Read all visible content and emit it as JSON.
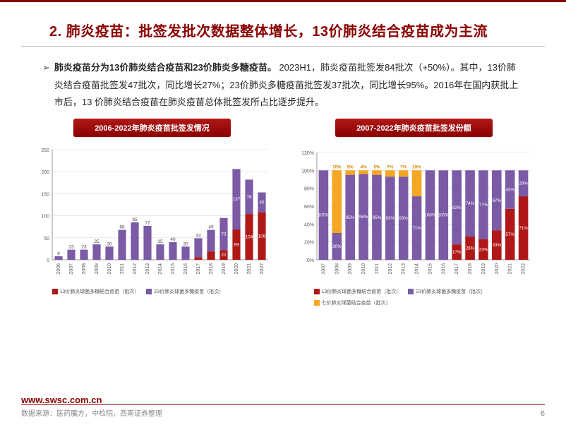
{
  "title": "2. 肺炎疫苗：批签发批次数据整体增长，13价肺炎结合疫苗成为主流",
  "bullet_marker": "➢",
  "body": {
    "bold_lead": "肺炎疫苗分为13价肺炎结合疫苗和23价肺炎多糖疫苗。",
    "rest": " 2023H1，肺炎疫苗批签发84批次（+50%）。其中，13价肺炎结合疫苗批签发47批次，同比增长27%；23价肺炎多糖疫苗批签发37批次，同比增长95%。2016年在国内获批上市后，13 价肺炎结合疫苗在肺炎疫苗总体批签发所占比逐步提升。"
  },
  "colors": {
    "brand_red": "#8b0000",
    "series_red": "#b01818",
    "series_purple": "#7b5aa6",
    "series_orange": "#f5a623",
    "axis": "#808080",
    "grid": "#d9d9d9",
    "tick_text": "#595959",
    "data_label": "#4a4a4a",
    "orange_label": "#d48806"
  },
  "left_chart": {
    "caption": "2006-2022年肺炎疫苗批签发情况",
    "type": "stacked-bar",
    "years": [
      "2006",
      "2007",
      "2008",
      "2009",
      "2010",
      "2011",
      "2012",
      "2013",
      "2014",
      "2015",
      "2016",
      "2017",
      "2018",
      "2019",
      "2020",
      "2021",
      "2022"
    ],
    "ylim": [
      0,
      250
    ],
    "ytick_step": 50,
    "yticks": [
      0,
      50,
      100,
      150,
      200,
      250
    ],
    "bar_width": 0.62,
    "series": [
      {
        "name": "13价肺炎球菌多糖结合疫苗（批次）",
        "color": "#b01818",
        "values": [
          0,
          0,
          0,
          0,
          0,
          0,
          0,
          0,
          0,
          0,
          0,
          6,
          19,
          22,
          69,
          104,
          108
        ]
      },
      {
        "name": "23价肺炎球菌多糖疫苗（批次）",
        "color": "#7b5aa6",
        "values": [
          8,
          23,
          23,
          35,
          30,
          68,
          85,
          77,
          35,
          40,
          30,
          43,
          49,
          73,
          137,
          78,
          45
        ]
      }
    ],
    "label_fontsize": 6.5,
    "tick_fontsize": 7
  },
  "right_chart": {
    "caption": "2007-2022年肺炎疫苗批签发份额",
    "type": "stacked-bar-100",
    "years": [
      "2007",
      "2008",
      "2009",
      "2010",
      "2011",
      "2012",
      "2013",
      "2014",
      "2015",
      "2016",
      "2017",
      "2018",
      "2019",
      "2020",
      "2021",
      "2022"
    ],
    "ylim": [
      0,
      120
    ],
    "ytick_step": 20,
    "yticks": [
      0,
      20,
      40,
      60,
      80,
      100,
      120
    ],
    "ytick_labels": [
      "0%",
      "20%",
      "40%",
      "60%",
      "80%",
      "100%",
      "120%"
    ],
    "bar_width": 0.72,
    "series": [
      {
        "name": "13价肺炎球菌多糖结合疫苗（批次）",
        "color": "#b01818",
        "values": [
          0,
          0,
          0,
          0,
          0,
          0,
          0,
          0,
          0,
          0,
          17,
          26,
          23,
          33,
          57,
          71
        ]
      },
      {
        "name": "23价肺炎球菌多糖疫苗（批次）",
        "color": "#7b5aa6",
        "values": [
          100,
          30,
          95,
          96,
          95,
          93,
          93,
          71,
          100,
          100,
          83,
          74,
          77,
          67,
          43,
          29
        ]
      },
      {
        "name": "七价肺炎球菌结合疫苗（批次）",
        "color": "#f5a623",
        "values": [
          0,
          70,
          5,
          4,
          5,
          7,
          7,
          29,
          0,
          0,
          0,
          0,
          0,
          0,
          0,
          0
        ]
      }
    ],
    "top_labels": [
      {
        "i": 0,
        "t": ""
      },
      {
        "i": 1,
        "t": "70%"
      },
      {
        "i": 2,
        "t": "5%"
      },
      {
        "i": 3,
        "t": "4%"
      },
      {
        "i": 4,
        "t": "5%"
      },
      {
        "i": 5,
        "t": "7%"
      },
      {
        "i": 6,
        "t": "7%"
      },
      {
        "i": 7,
        "t": "29%"
      }
    ],
    "mid_labels": [
      {
        "i": 0,
        "t": "100%"
      },
      {
        "i": 1,
        "t": "30%"
      },
      {
        "i": 2,
        "t": "95%"
      },
      {
        "i": 3,
        "t": "96%"
      },
      {
        "i": 4,
        "t": "95%"
      },
      {
        "i": 5,
        "t": "93%"
      },
      {
        "i": 6,
        "t": "93%"
      },
      {
        "i": 7,
        "t": "71%"
      },
      {
        "i": 8,
        "t": "100%"
      },
      {
        "i": 9,
        "t": "100%"
      },
      {
        "i": 10,
        "t": "83%"
      },
      {
        "i": 11,
        "t": "74%"
      },
      {
        "i": 12,
        "t": "77%"
      },
      {
        "i": 13,
        "t": "67%"
      },
      {
        "i": 14,
        "t": "43%"
      },
      {
        "i": 15,
        "t": "29%"
      }
    ],
    "bot_labels": [
      {
        "i": 10,
        "t": "17%"
      },
      {
        "i": 11,
        "t": "26%"
      },
      {
        "i": 12,
        "t": "23%"
      },
      {
        "i": 13,
        "t": "33%"
      },
      {
        "i": 14,
        "t": "57%"
      },
      {
        "i": 15,
        "t": "71%"
      }
    ],
    "label_fontsize": 6.2,
    "tick_fontsize": 7
  },
  "footer": {
    "url": "www.swsc.com.cn",
    "source": "数据来源：医药魔方，中检院，西南证券整理",
    "page": "6"
  }
}
